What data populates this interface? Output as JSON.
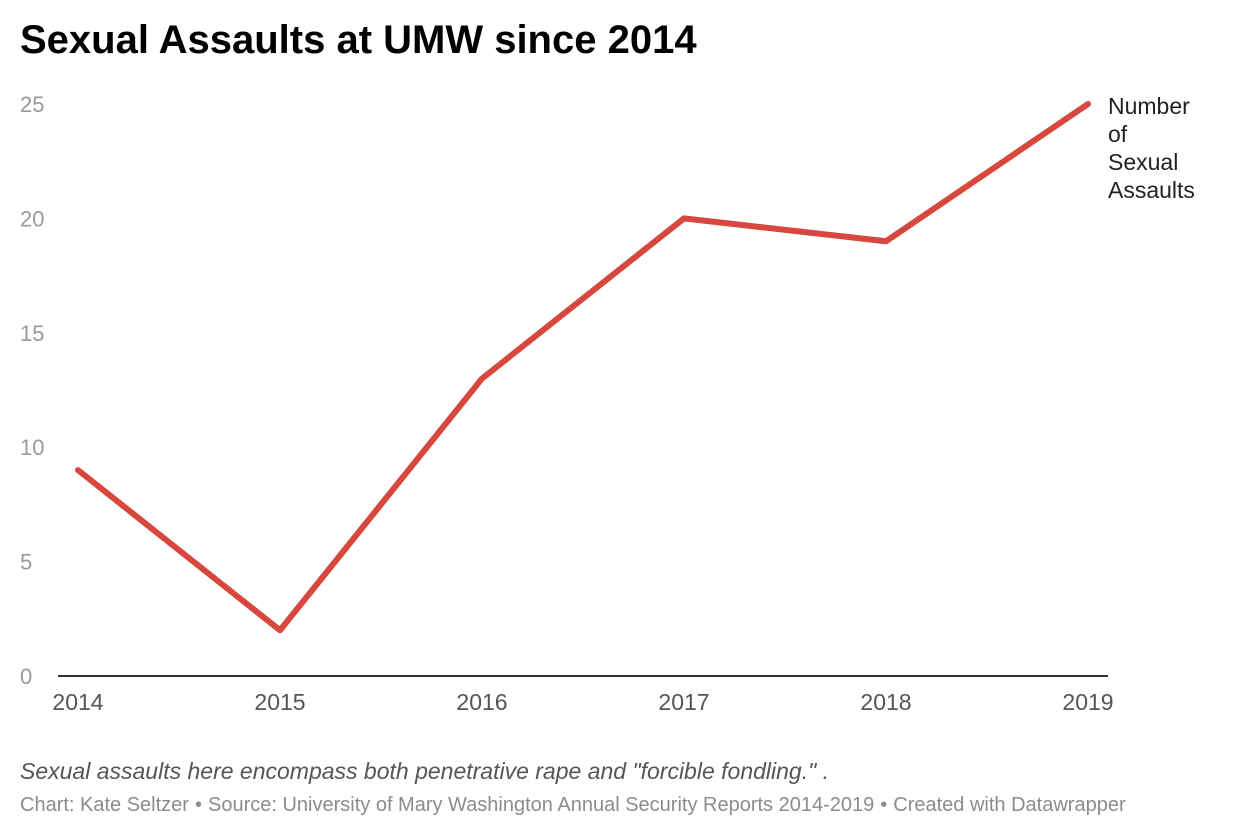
{
  "chart_data": {
    "type": "line",
    "title": "Sexual Assaults at UMW since 2014",
    "x": [
      "2014",
      "2015",
      "2016",
      "2017",
      "2018",
      "2019"
    ],
    "series": [
      {
        "name": "Number of Sexual Assaults",
        "label_lines": [
          "Number",
          "of",
          "Sexual",
          "Assaults"
        ],
        "values": [
          9,
          2,
          13,
          20,
          19,
          25
        ],
        "color": "#d8473d"
      }
    ],
    "yticks": [
      0,
      5,
      10,
      15,
      20,
      25
    ],
    "ylim": [
      0,
      25
    ],
    "xlabel": "",
    "ylabel": "",
    "grid": false,
    "legend": "direct label at line end (right)"
  },
  "notes": "Sexual assaults here encompass both penetrative rape and \"forcible fondling.\" .",
  "byline": {
    "chart": "Chart: Kate Seltzer",
    "source": "Source: University of Mary Washington Annual Security Reports 2014-2019",
    "credit": "Created with Datawrapper",
    "separator": "•"
  },
  "colors": {
    "line": "#d8473d",
    "axis": "#333333",
    "tick_label": "#9a9a9a",
    "x_tick_label": "#555555"
  }
}
